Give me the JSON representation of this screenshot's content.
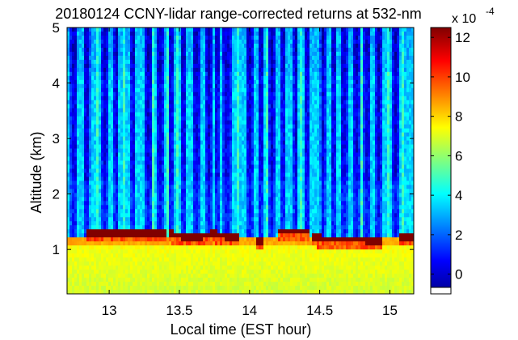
{
  "chart_data": {
    "type": "heatmap",
    "title": "20180124 CCNY-lidar range-corrected returns at 532-nm",
    "xlabel": "Local time (EST hour)",
    "ylabel": "Altitude (km)",
    "xlim": [
      12.7,
      15.17
    ],
    "ylim": [
      0.2,
      5.0
    ],
    "xticks": [
      13,
      13.5,
      14,
      14.5,
      15
    ],
    "xtick_labels": [
      "13",
      "13.5",
      "14",
      "14.5",
      "15"
    ],
    "yticks": [
      1,
      2,
      3,
      4,
      5
    ],
    "ytick_labels": [
      "1",
      "2",
      "3",
      "4",
      "5"
    ],
    "colorbar": {
      "multiplier_label": "x 10",
      "exponent_label": "-4",
      "range": [
        -1,
        12.5
      ],
      "ticks": [
        0,
        2,
        4,
        6,
        8,
        10,
        12
      ],
      "tick_labels": [
        "0",
        "2",
        "4",
        "6",
        "8",
        "10",
        "12"
      ],
      "colormap": "jet",
      "colors": [
        "#00008f",
        "#0000ff",
        "#0080ff",
        "#00ffff",
        "#80ff80",
        "#ffff00",
        "#ff8000",
        "#ff0000",
        "#800000"
      ]
    },
    "features": {
      "aerosol_layer_top_km": 1.25,
      "boundary_layer_value": 7,
      "cloud_value": 12.5,
      "clear_background_value": 3.5,
      "cloud_free_streak_value": 0
    }
  }
}
